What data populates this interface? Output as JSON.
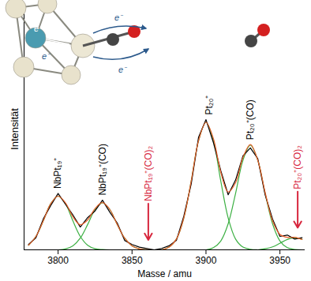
{
  "chart_data": {
    "type": "line",
    "x_label": "Masse / amu",
    "y_label": "Intensität",
    "xlim": [
      3777,
      3967
    ],
    "ylim": [
      0,
      180
    ],
    "xticks": [
      3800,
      3850,
      3900,
      3950
    ],
    "tick_labels": "x",
    "x": [
      3780,
      3785,
      3790,
      3795,
      3800,
      3805,
      3810,
      3815,
      3820,
      3825,
      3830,
      3835,
      3840,
      3845,
      3850,
      3855,
      3860,
      3865,
      3870,
      3875,
      3880,
      3885,
      3890,
      3895,
      3900,
      3905,
      3910,
      3915,
      3920,
      3925,
      3930,
      3935,
      3940,
      3945,
      3950,
      3955,
      3960,
      3965
    ],
    "series": [
      {
        "color": "#3cb043",
        "values": [
          3.4,
          10,
          21.6,
          34.3,
          40,
          34.3,
          21.6,
          10,
          3.4,
          0.8,
          0.2,
          0,
          0,
          0,
          0,
          0,
          0,
          0,
          0,
          0,
          0,
          0,
          0,
          0,
          0,
          0,
          0,
          0,
          0,
          0,
          0,
          0,
          0,
          0,
          0,
          0,
          0,
          0
        ]
      },
      {
        "color": "#3cb043",
        "values": [
          0,
          0,
          0,
          0,
          0,
          0.7,
          3,
          8.7,
          18.9,
          30,
          35,
          30,
          18.9,
          8.7,
          3,
          0.7,
          0.1,
          0,
          0,
          0,
          0,
          0,
          0,
          0,
          0,
          0,
          0,
          0,
          0,
          0,
          0,
          0,
          0,
          0,
          0,
          0,
          0,
          0
        ]
      },
      {
        "color": "#3cb043",
        "values": [
          0,
          0,
          0,
          0,
          0,
          0,
          0,
          0,
          0,
          0,
          0,
          0,
          0,
          0,
          0,
          0,
          0,
          0,
          0,
          2,
          8,
          23.7,
          51.2,
          81.4,
          95,
          81.4,
          51.2,
          23.7,
          8,
          2,
          0.4,
          0,
          0,
          0,
          0,
          0,
          0,
          0
        ]
      },
      {
        "color": "#3cb043",
        "values": [
          0,
          0,
          0,
          0,
          0,
          0,
          0,
          0,
          0,
          0,
          0,
          0,
          0,
          0,
          0,
          0,
          0,
          0,
          0,
          0,
          0,
          0,
          0,
          0,
          0,
          1.6,
          6.6,
          19.4,
          42,
          66.8,
          78,
          66.8,
          42,
          19.4,
          6.6,
          1.6,
          0.3,
          0
        ]
      },
      {
        "color": "#3cb043",
        "values": [
          0,
          0,
          0,
          0,
          0,
          0,
          0,
          0,
          0,
          0,
          0,
          0,
          0,
          0,
          0,
          0,
          0,
          0,
          0,
          0,
          0,
          0,
          0,
          0,
          0,
          0,
          0,
          0,
          0,
          0,
          0,
          0,
          0.8,
          2.2,
          4.9,
          7.7,
          9,
          7.7
        ]
      },
      {
        "color": "#000000",
        "values": [
          4,
          9,
          23,
          33,
          42,
          34,
          26,
          17,
          24,
          29,
          37,
          28,
          20,
          7,
          4,
          2,
          1,
          0,
          1,
          3,
          7,
          25,
          49,
          84,
          97,
          80,
          59,
          41,
          52,
          70,
          76,
          68,
          41,
          23,
          10,
          11,
          8,
          9
        ]
      },
      {
        "color": "#e8602c",
        "values": [
          3.4,
          10,
          21.6,
          34.3,
          40,
          35,
          24.6,
          18.7,
          22.3,
          30.8,
          35.2,
          30,
          18.9,
          8.7,
          3,
          0.7,
          0.1,
          0,
          0,
          2,
          8,
          23.7,
          51.2,
          81.4,
          95,
          83,
          57.8,
          43.1,
          50,
          68.8,
          78.4,
          66.8,
          42.8,
          21.6,
          11.5,
          9.3,
          9.3,
          7.7
        ]
      }
    ],
    "annotations": [
      {
        "text": "NbPt₁₉⁺",
        "x": 3800,
        "color": "#000000"
      },
      {
        "text": "NbPt₁₉⁺(CO)",
        "x": 3830,
        "color": "#000000"
      },
      {
        "text": "NbPt₁₉⁺(CO)₂",
        "x": 3861,
        "color": "#d7263d",
        "marker": "arrow"
      },
      {
        "text": "Pt₂₀⁺",
        "x": 3902,
        "color": "#000000"
      },
      {
        "text": "Pt₂₀⁺(CO)",
        "x": 3930,
        "color": "#000000"
      },
      {
        "text": "Pt₂₀⁺(CO)₂",
        "x": 3962,
        "color": "#d7263d",
        "marker": "arrow"
      }
    ],
    "illustration": {
      "labels": [
        "e⁻",
        "e⁻",
        "e⁻",
        "e⁻"
      ]
    }
  }
}
